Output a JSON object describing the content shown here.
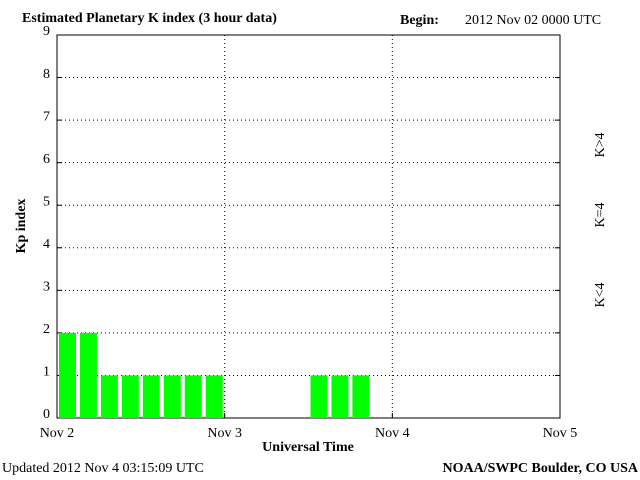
{
  "chart_data": {
    "type": "bar",
    "title": "Estimated Planetary K index (3 hour data)",
    "begin_label": "Begin:",
    "begin_value": "2012 Nov 02 0000 UTC",
    "xlabel": "Universal Time",
    "ylabel": "Kp index",
    "updated": "Updated 2012 Nov  4 03:15:09 UTC",
    "source": "NOAA/SWPC Boulder, CO USA",
    "bin_width": 0.125,
    "x": [
      0,
      0.125,
      0.25,
      0.375,
      0.5,
      0.625,
      0.75,
      0.875,
      1.5,
      1.625,
      1.75
    ],
    "values": [
      2,
      2,
      1,
      1,
      1,
      1,
      1,
      1,
      1,
      1,
      1
    ],
    "color": "#00ff00",
    "xlim": [
      0,
      3
    ],
    "xticks": [
      {
        "value": 0,
        "label": "Nov 2"
      },
      {
        "value": 1,
        "label": "Nov 3"
      },
      {
        "value": 2,
        "label": "Nov 4"
      },
      {
        "value": 3,
        "label": "Nov 5"
      }
    ],
    "ylim": [
      0,
      9
    ],
    "yticks": [
      0,
      1,
      2,
      3,
      4,
      5,
      6,
      7,
      8,
      9
    ],
    "grid": true,
    "legend": [
      {
        "label": "K<4",
        "color": "#00ff00"
      },
      {
        "label": "K=4",
        "color": "#ffcc00"
      },
      {
        "label": "K>4",
        "color": "#ff2200"
      }
    ]
  }
}
